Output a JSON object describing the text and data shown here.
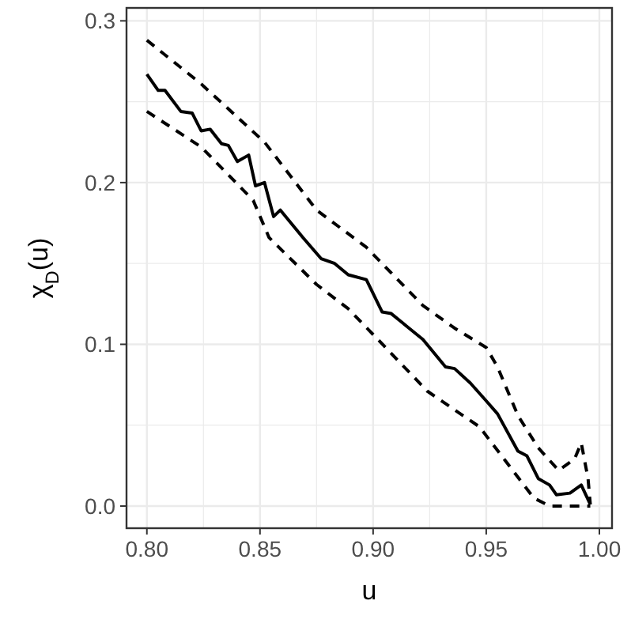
{
  "chart_data": {
    "type": "line",
    "xlabel": "u",
    "ylabel": "χ$_{D}$(u)",
    "xlim": [
      0.791,
      1.0056
    ],
    "ylim": [
      -0.0137,
      0.308
    ],
    "xticks": [
      {
        "value": 0.8,
        "label": "0.80"
      },
      {
        "value": 0.85,
        "label": "0.85"
      },
      {
        "value": 0.9,
        "label": "0.90"
      },
      {
        "value": 0.95,
        "label": "0.95"
      },
      {
        "value": 1.0,
        "label": "1.00"
      }
    ],
    "yticks": [
      {
        "value": 0,
        "label": "0.0"
      },
      {
        "value": 0.1,
        "label": "0.1"
      },
      {
        "value": 0.2,
        "label": "0.2"
      },
      {
        "value": 0.3,
        "label": "0.3"
      }
    ],
    "grid": true,
    "marker": "none",
    "series": [
      {
        "color": "#000000",
        "line_style": "solid",
        "x": [
          0.8,
          0.805,
          0.808,
          0.815,
          0.82,
          0.824,
          0.828,
          0.833,
          0.836,
          0.84,
          0.845,
          0.848,
          0.852,
          0.856,
          0.859,
          0.869,
          0.877,
          0.883,
          0.889,
          0.897,
          0.904,
          0.908,
          0.915,
          0.922,
          0.932,
          0.936,
          0.943,
          0.95,
          0.955,
          0.964,
          0.968,
          0.973,
          0.978,
          0.981,
          0.987,
          0.992,
          0.996
        ],
        "values": [
          0.267,
          0.257,
          0.257,
          0.244,
          0.243,
          0.232,
          0.233,
          0.224,
          0.223,
          0.213,
          0.217,
          0.198,
          0.2,
          0.179,
          0.183,
          0.166,
          0.153,
          0.15,
          0.143,
          0.14,
          0.12,
          0.119,
          0.111,
          0.103,
          0.086,
          0.085,
          0.076,
          0.065,
          0.057,
          0.034,
          0.031,
          0.017,
          0.013,
          0.007,
          0.008,
          0.013,
          0.001
        ]
      },
      {
        "color": "#000000",
        "line_style": "dashed",
        "x": [
          0.8,
          0.824,
          0.852,
          0.875,
          0.897,
          0.922,
          0.936,
          0.95,
          0.955,
          0.964,
          0.973,
          0.982,
          0.989,
          0.992,
          0.995,
          0.996
        ],
        "values": [
          0.288,
          0.261,
          0.225,
          0.183,
          0.16,
          0.124,
          0.11,
          0.098,
          0.086,
          0.056,
          0.036,
          0.022,
          0.029,
          0.039,
          0.017,
          0.001
        ]
      },
      {
        "color": "#000000",
        "line_style": "dashed",
        "x": [
          0.8,
          0.824,
          0.847,
          0.854,
          0.875,
          0.889,
          0.898,
          0.924,
          0.947,
          0.971,
          0.978,
          0.996
        ],
        "values": [
          0.244,
          0.222,
          0.189,
          0.166,
          0.137,
          0.122,
          0.109,
          0.071,
          0.049,
          0.005,
          0.0,
          0.0
        ]
      }
    ]
  }
}
